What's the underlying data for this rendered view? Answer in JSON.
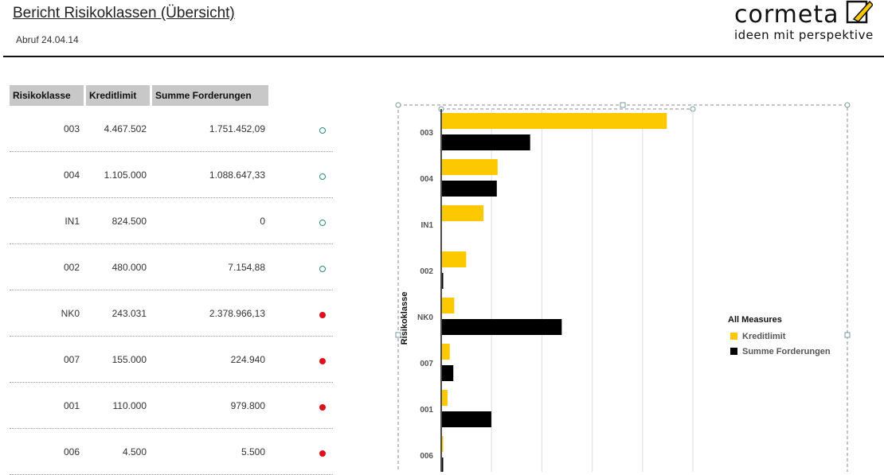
{
  "header": {
    "title": "Bericht Risikoklassen (Übersicht)",
    "subtitle": "Abruf 24.04.14",
    "logo_word": "cormeta",
    "logo_tagline": "ideen mit perspektive"
  },
  "table": {
    "headers": [
      "Risikoklasse",
      "Kreditlimit",
      "Summe Forderungen"
    ],
    "rows": [
      {
        "klasse": "003",
        "limit": "4.467.502",
        "summe": "1.751.452,09",
        "status": "ok"
      },
      {
        "klasse": "004",
        "limit": "1.105.000",
        "summe": "1.088.647,33",
        "status": "ok"
      },
      {
        "klasse": "IN1",
        "limit": "824.500",
        "summe": "0",
        "status": "ok"
      },
      {
        "klasse": "002",
        "limit": "480.000",
        "summe": "7.154,88",
        "status": "ok"
      },
      {
        "klasse": "NK0",
        "limit": "243.031",
        "summe": "2.378.966,13",
        "status": "bad"
      },
      {
        "klasse": "007",
        "limit": "155.000",
        "summe": "224.940",
        "status": "bad"
      },
      {
        "klasse": "001",
        "limit": "110.000",
        "summe": "979.800",
        "status": "bad"
      },
      {
        "klasse": "006",
        "limit": "4.500",
        "summe": "5.500",
        "status": "bad"
      }
    ],
    "status_colors": {
      "ok": "#2a8a7a",
      "bad": "#e0101a"
    }
  },
  "chart_data": {
    "type": "bar",
    "orientation": "horizontal",
    "categories": [
      "003",
      "004",
      "IN1",
      "002",
      "NK0",
      "007",
      "001",
      "006"
    ],
    "series": [
      {
        "name": "Kreditlimit",
        "color": "#fcc800",
        "values": [
          4467502,
          1105000,
          824500,
          480000,
          243031,
          155000,
          110000,
          4500
        ]
      },
      {
        "name": "Summe Forderungen",
        "color": "#000000",
        "values": [
          1751452.09,
          1088647.33,
          0,
          7154.88,
          2378966.13,
          224940,
          979800,
          5500
        ]
      }
    ],
    "ylabel": "Risikoklasse",
    "xlim": [
      0,
      5000000
    ],
    "legend_title": "All Measures",
    "legend_position": "right",
    "grid": true
  }
}
